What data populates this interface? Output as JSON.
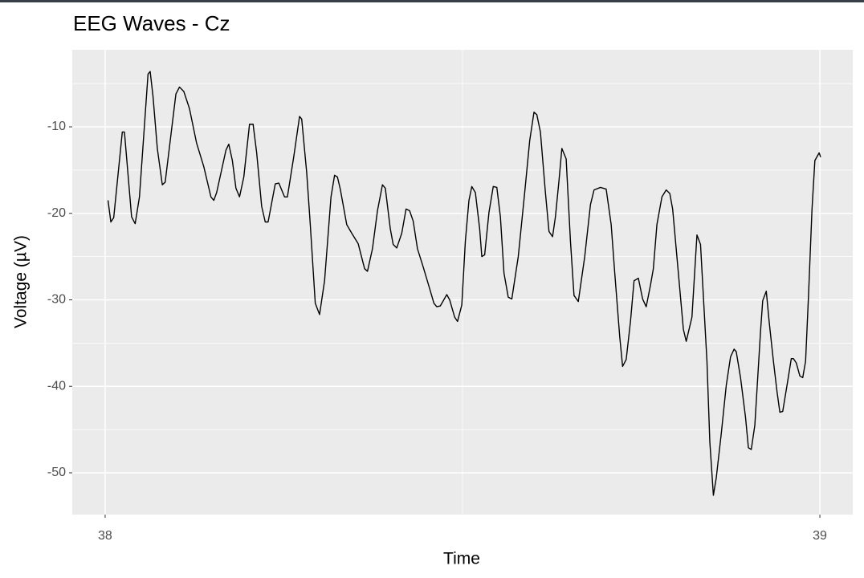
{
  "chart_data": {
    "type": "line",
    "title": "EEG Waves - Cz",
    "x_label": "Time",
    "y_label": "Voltage (µV)",
    "xlim": [
      37.954,
      39.046
    ],
    "ylim": [
      -54.83,
      -1.09
    ],
    "xticks": [
      38,
      39
    ],
    "x_minor_ticks": [
      38.5
    ],
    "yticks": [
      -50,
      -40,
      -30,
      -20,
      -10
    ],
    "y_minor_ticks": [
      -45,
      -35,
      -25,
      -15,
      -5
    ],
    "grid": true,
    "background": "#ebebeb",
    "grid_color": "#ffffff",
    "x": [
      38.004,
      38.008,
      38.012,
      38.024,
      38.027,
      38.037,
      38.042,
      38.048,
      38.06,
      38.063,
      38.067,
      38.073,
      38.08,
      38.084,
      38.099,
      38.104,
      38.11,
      38.118,
      38.128,
      38.138,
      38.148,
      38.152,
      38.156,
      38.169,
      38.173,
      38.178,
      38.183,
      38.188,
      38.194,
      38.202,
      38.207,
      38.212,
      38.219,
      38.224,
      38.228,
      38.238,
      38.243,
      38.251,
      38.255,
      38.264,
      38.272,
      38.275,
      38.282,
      38.287,
      38.294,
      38.3,
      38.307,
      38.316,
      38.321,
      38.325,
      38.329,
      38.338,
      38.345,
      38.354,
      38.363,
      38.367,
      38.374,
      38.381,
      38.388,
      38.392,
      38.399,
      38.403,
      38.408,
      38.415,
      38.421,
      38.426,
      38.431,
      38.437,
      38.445,
      38.454,
      38.46,
      38.464,
      38.469,
      38.478,
      38.482,
      38.489,
      38.493,
      38.499,
      38.504,
      38.509,
      38.513,
      38.518,
      38.524,
      38.527,
      38.531,
      38.537,
      38.543,
      38.548,
      38.553,
      38.558,
      38.564,
      38.569,
      38.578,
      38.587,
      38.594,
      38.6,
      38.604,
      38.609,
      38.616,
      38.621,
      38.626,
      38.63,
      38.635,
      38.639,
      38.645,
      38.651,
      38.656,
      38.662,
      38.671,
      38.679,
      38.684,
      38.693,
      38.701,
      38.708,
      38.713,
      38.72,
      38.724,
      38.729,
      38.735,
      38.74,
      38.746,
      38.752,
      38.757,
      38.763,
      38.767,
      38.772,
      38.779,
      38.785,
      38.79,
      38.794,
      38.802,
      38.809,
      38.813,
      38.821,
      38.828,
      38.833,
      38.842,
      38.846,
      38.851,
      38.855,
      38.862,
      38.869,
      38.875,
      38.88,
      38.883,
      38.889,
      38.896,
      38.9,
      38.904,
      38.909,
      38.917,
      38.92,
      38.925,
      38.929,
      38.935,
      38.94,
      38.944,
      38.948,
      38.954,
      38.96,
      38.963,
      38.967,
      38.972,
      38.976,
      38.98,
      38.984,
      38.989,
      38.993,
      38.999,
      39.001
    ],
    "series": [
      {
        "name": "Cz",
        "color": "#000000",
        "values": [
          -18.5,
          -21.0,
          -20.5,
          -10.6,
          -10.6,
          -20.4,
          -21.2,
          -18.1,
          -3.9,
          -3.6,
          -6.5,
          -12.5,
          -16.7,
          -16.4,
          -6.2,
          -5.4,
          -5.9,
          -7.9,
          -11.9,
          -14.6,
          -18.1,
          -18.5,
          -17.6,
          -12.7,
          -12.0,
          -13.9,
          -17.1,
          -18.1,
          -15.8,
          -9.7,
          -9.7,
          -13.0,
          -19.2,
          -21.0,
          -21.0,
          -16.6,
          -16.5,
          -18.1,
          -18.1,
          -13.4,
          -8.8,
          -9.1,
          -15.3,
          -21.3,
          -30.4,
          -31.7,
          -27.8,
          -18.1,
          -15.6,
          -15.8,
          -17.2,
          -21.3,
          -22.3,
          -23.5,
          -26.4,
          -26.7,
          -24.1,
          -19.7,
          -16.7,
          -17.1,
          -21.8,
          -23.6,
          -24.0,
          -22.3,
          -19.5,
          -19.7,
          -20.9,
          -24.1,
          -26.2,
          -28.7,
          -30.4,
          -30.8,
          -30.7,
          -29.4,
          -30.0,
          -32.0,
          -32.5,
          -30.6,
          -23.2,
          -18.5,
          -16.9,
          -17.6,
          -21.8,
          -25.0,
          -24.8,
          -19.9,
          -16.9,
          -17.0,
          -20.4,
          -26.9,
          -29.7,
          -29.9,
          -25.0,
          -17.6,
          -11.6,
          -8.3,
          -8.6,
          -10.6,
          -17.6,
          -22.1,
          -22.7,
          -20.4,
          -16.2,
          -12.5,
          -13.7,
          -23.2,
          -29.5,
          -30.2,
          -25.0,
          -19.0,
          -17.3,
          -17.0,
          -17.2,
          -21.3,
          -26.9,
          -34.3,
          -37.7,
          -36.9,
          -32.5,
          -27.8,
          -27.5,
          -29.9,
          -30.8,
          -28.3,
          -26.4,
          -21.3,
          -18.1,
          -17.3,
          -17.7,
          -19.5,
          -26.9,
          -33.4,
          -34.8,
          -32.0,
          -22.5,
          -23.6,
          -37.1,
          -46.4,
          -52.6,
          -50.6,
          -45.5,
          -39.9,
          -36.6,
          -35.7,
          -36.0,
          -39.0,
          -43.6,
          -47.1,
          -47.3,
          -44.5,
          -33.6,
          -30.1,
          -29.0,
          -32.5,
          -37.1,
          -40.6,
          -43.0,
          -42.9,
          -39.9,
          -36.8,
          -36.8,
          -37.3,
          -38.8,
          -39.0,
          -37.1,
          -29.7,
          -19.5,
          -13.9,
          -13.0,
          -13.5
        ]
      }
    ]
  }
}
